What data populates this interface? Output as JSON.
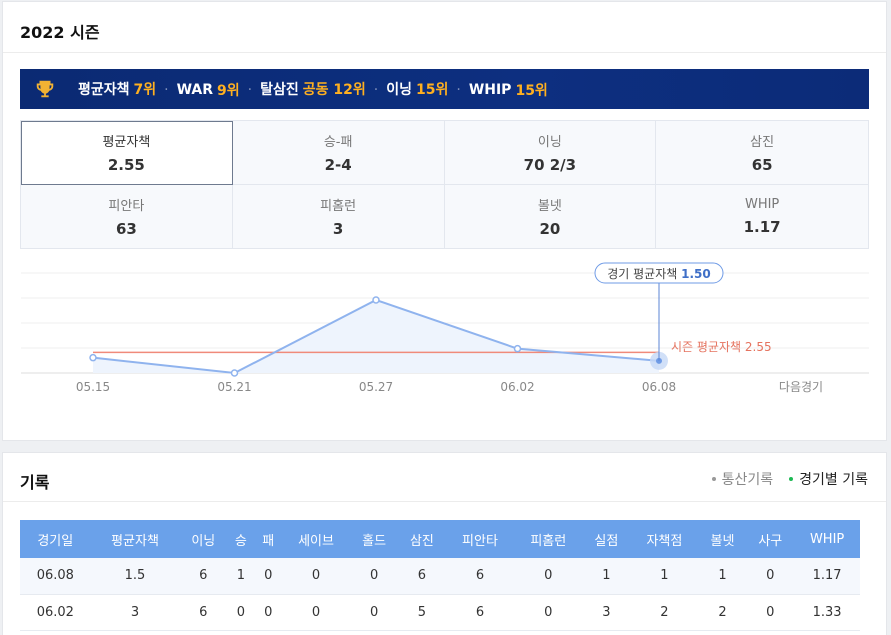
{
  "season": {
    "title": "2022 시즌",
    "ranks": [
      {
        "label": "평균자책",
        "value": "7위"
      },
      {
        "label": "WAR",
        "value": "9위"
      },
      {
        "label": "탈삼진",
        "value": "공동 12위"
      },
      {
        "label": "이닝",
        "value": "15위"
      },
      {
        "label": "WHIP",
        "value": "15위"
      }
    ],
    "rank_separator": "·",
    "stats": [
      {
        "label": "평균자책",
        "value": "2.55"
      },
      {
        "label": "승-패",
        "value": "2-4"
      },
      {
        "label": "이닝",
        "value": "70 2/3"
      },
      {
        "label": "삼진",
        "value": "65"
      },
      {
        "label": "피안타",
        "value": "63"
      },
      {
        "label": "피홈런",
        "value": "3"
      },
      {
        "label": "볼넷",
        "value": "20"
      },
      {
        "label": "WHIP",
        "value": "1.17"
      }
    ]
  },
  "colors": {
    "banner": "#0d2f80",
    "rank_accent": "#ffb020",
    "line": "#8fb3ee",
    "season_line": "#f08a7a",
    "table_header": "#6aa1ea"
  },
  "chart_data": {
    "type": "line",
    "x": [
      "05.15",
      "05.21",
      "05.27",
      "06.02",
      "06.08"
    ],
    "series": [
      {
        "values": [
          1.89,
          0.0,
          9.0,
          3.0,
          1.5
        ]
      }
    ],
    "reference_line": {
      "label": "시즌 평균자책",
      "value": 2.55
    },
    "tooltip": {
      "label": "경기 평균자책",
      "value": "1.50"
    },
    "next_label": "다음경기",
    "ylim": [
      0,
      9
    ]
  },
  "records": {
    "title": "기록",
    "tabs": [
      {
        "label": "통산기록",
        "active": false
      },
      {
        "label": "경기별 기록",
        "active": true
      }
    ],
    "columns": [
      "경기일",
      "평균자책",
      "이닝",
      "승",
      "패",
      "세이브",
      "홀드",
      "삼진",
      "피안타",
      "피홈런",
      "실점",
      "자책점",
      "볼넷",
      "사구",
      "WHIP"
    ],
    "rows": [
      [
        "06.08",
        "1.5",
        "6",
        "1",
        "0",
        "0",
        "0",
        "6",
        "6",
        "0",
        "1",
        "1",
        "1",
        "0",
        "1.17"
      ],
      [
        "06.02",
        "3",
        "6",
        "0",
        "0",
        "0",
        "0",
        "5",
        "6",
        "0",
        "3",
        "2",
        "2",
        "0",
        "1.33"
      ]
    ]
  }
}
